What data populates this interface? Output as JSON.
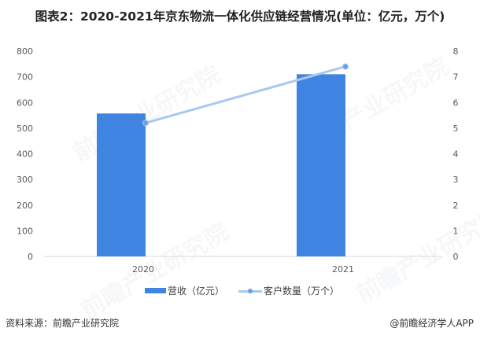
{
  "title": "图表2：2020-2021年京东物流一体化供应链经营情况(单位：亿元，万个)",
  "chart_data": {
    "type": "bar+line",
    "title": "图表2：2020-2021年京东物流一体化供应链经营情况(单位：亿元，万个)",
    "categories": [
      "2020",
      "2021"
    ],
    "series": [
      {
        "name": "营收（亿元）",
        "type": "bar",
        "axis": "left",
        "values": [
          557,
          710
        ],
        "color": "#3E84E0"
      },
      {
        "name": "客户数量（万个）",
        "type": "line",
        "axis": "right",
        "values": [
          5.2,
          7.4
        ],
        "color": "#A9C8F0",
        "marker_color": "#6A9FE6"
      }
    ],
    "left_axis": {
      "ylim": [
        0,
        800
      ],
      "ticks": [
        "0",
        "100",
        "200",
        "300",
        "400",
        "500",
        "600",
        "700",
        "800"
      ]
    },
    "right_axis": {
      "ylim": [
        0,
        8
      ],
      "ticks": [
        "0",
        "1",
        "2",
        "3",
        "4",
        "5",
        "6",
        "7",
        "8"
      ]
    },
    "xlabel": "",
    "ylabel": "",
    "grid": false,
    "legend_position": "bottom"
  },
  "legend": {
    "bar_label": "营收（亿元）",
    "line_label": "客户数量（万个）"
  },
  "footer": {
    "source": "资料来源：前瞻产业研究院",
    "credit": "@前瞻经济学人APP"
  },
  "watermark": "前瞻产业研究院"
}
